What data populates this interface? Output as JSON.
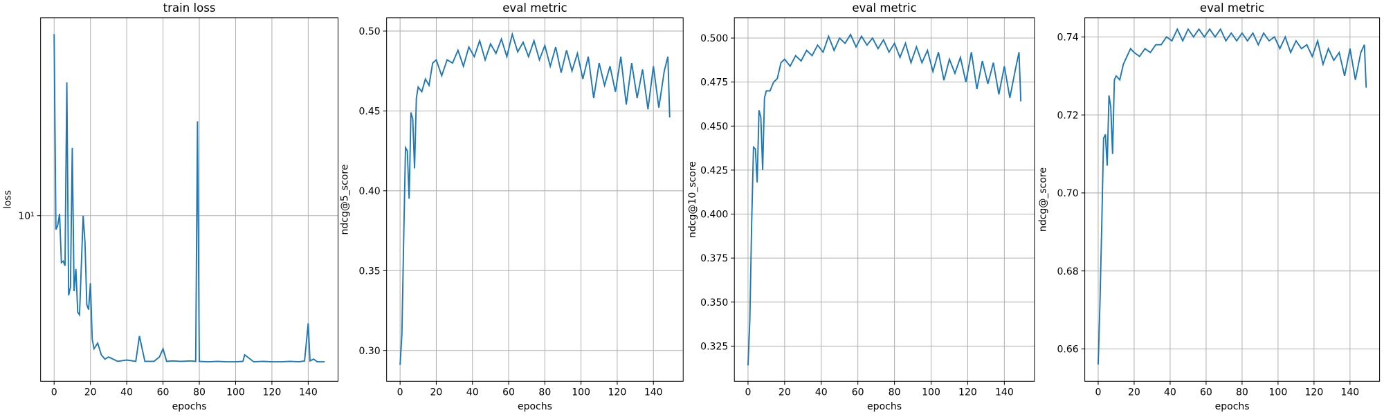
{
  "chart_data": [
    {
      "type": "line",
      "title": "train loss",
      "x_label": "epochs",
      "y_label": "loss",
      "color": "#1f77b4",
      "grid": true,
      "ylog": true,
      "x": [
        0,
        1,
        2,
        3,
        4,
        5,
        6,
        7,
        8,
        9,
        10,
        11,
        12,
        13,
        14,
        16,
        17,
        18,
        19,
        20,
        21,
        22,
        24,
        26,
        28,
        30,
        35,
        40,
        45,
        47,
        50,
        55,
        58,
        60,
        62,
        65,
        70,
        75,
        78,
        79,
        80,
        85,
        90,
        95,
        100,
        104,
        105,
        110,
        115,
        120,
        125,
        130,
        135,
        138,
        140,
        141,
        143,
        145,
        149
      ],
      "values": [
        72,
        8.6,
        9,
        10.2,
        6,
        6.1,
        5.8,
        42.6,
        4.2,
        4.6,
        20.9,
        4.4,
        5.6,
        3.5,
        3.4,
        10,
        7.5,
        3.8,
        3.6,
        4.8,
        2.6,
        2.35,
        2.5,
        2.2,
        2.1,
        2.15,
        2.05,
        2.08,
        2.05,
        2.7,
        2.05,
        2.05,
        2.15,
        2.35,
        2.05,
        2.06,
        2.05,
        2.06,
        2.05,
        27.9,
        2.05,
        2.04,
        2.05,
        2.04,
        2.04,
        2.05,
        2.2,
        2.04,
        2.05,
        2.04,
        2.04,
        2.05,
        2.04,
        2.06,
        3.1,
        2.06,
        2.1,
        2.04,
        2.04
      ],
      "xlim": [
        -7.45,
        156.45
      ],
      "xticks": [
        0,
        20,
        40,
        60,
        80,
        100,
        120,
        140
      ],
      "ylim": [
        1.65,
        86
      ],
      "yticks": [
        {
          "value": 10,
          "label": "10¹"
        }
      ]
    },
    {
      "type": "line",
      "title": "eval metric",
      "x_label": "epochs",
      "y_label": "ndcg@5_score",
      "color": "#1f77b4",
      "grid": true,
      "x": [
        0,
        1,
        2,
        3,
        4,
        5,
        6,
        7,
        8,
        9,
        10,
        12,
        14,
        16,
        18,
        20,
        23,
        26,
        29,
        32,
        35,
        38,
        41,
        44,
        47,
        50,
        53,
        56,
        59,
        62,
        65,
        68,
        71,
        74,
        77,
        80,
        83,
        86,
        89,
        92,
        95,
        98,
        101,
        104,
        107,
        110,
        113,
        116,
        119,
        122,
        125,
        128,
        131,
        134,
        137,
        140,
        143,
        146,
        148,
        149
      ],
      "values": [
        0.291,
        0.31,
        0.37,
        0.427,
        0.425,
        0.395,
        0.449,
        0.445,
        0.414,
        0.458,
        0.465,
        0.462,
        0.47,
        0.466,
        0.48,
        0.482,
        0.472,
        0.482,
        0.48,
        0.488,
        0.478,
        0.49,
        0.484,
        0.494,
        0.482,
        0.492,
        0.486,
        0.495,
        0.484,
        0.498,
        0.487,
        0.493,
        0.484,
        0.494,
        0.482,
        0.491,
        0.478,
        0.49,
        0.474,
        0.488,
        0.475,
        0.486,
        0.47,
        0.484,
        0.458,
        0.48,
        0.466,
        0.478,
        0.462,
        0.484,
        0.454,
        0.48,
        0.458,
        0.476,
        0.451,
        0.478,
        0.452,
        0.475,
        0.484,
        0.446
      ],
      "xlim": [
        -7.45,
        156.45
      ],
      "xticks": [
        0,
        20,
        40,
        60,
        80,
        100,
        120,
        140
      ],
      "ylim": [
        0.2807,
        0.5083
      ],
      "yticks": [
        {
          "value": 0.3,
          "label": "0.30"
        },
        0.35,
        {
          "value": 0.4,
          "label": "0.40"
        },
        0.45,
        {
          "value": 0.5,
          "label": "0.50"
        }
      ]
    },
    {
      "type": "line",
      "title": "eval metric",
      "x_label": "epochs",
      "y_label": "ndcg@10_score",
      "color": "#1f77b4",
      "grid": true,
      "x": [
        0,
        1,
        2,
        3,
        4,
        5,
        6,
        7,
        8,
        9,
        10,
        12,
        14,
        16,
        18,
        20,
        23,
        26,
        29,
        32,
        35,
        38,
        41,
        44,
        47,
        50,
        53,
        56,
        59,
        62,
        65,
        68,
        71,
        74,
        77,
        80,
        83,
        86,
        89,
        92,
        95,
        98,
        101,
        104,
        107,
        110,
        113,
        116,
        119,
        122,
        125,
        128,
        131,
        134,
        137,
        140,
        143,
        146,
        148,
        149
      ],
      "values": [
        0.314,
        0.34,
        0.395,
        0.438,
        0.437,
        0.418,
        0.459,
        0.455,
        0.425,
        0.466,
        0.47,
        0.47,
        0.475,
        0.477,
        0.486,
        0.488,
        0.484,
        0.49,
        0.487,
        0.493,
        0.49,
        0.496,
        0.492,
        0.501,
        0.493,
        0.5,
        0.497,
        0.502,
        0.495,
        0.501,
        0.496,
        0.5,
        0.494,
        0.499,
        0.492,
        0.497,
        0.489,
        0.497,
        0.486,
        0.495,
        0.486,
        0.493,
        0.481,
        0.492,
        0.476,
        0.488,
        0.48,
        0.489,
        0.475,
        0.492,
        0.471,
        0.487,
        0.474,
        0.486,
        0.468,
        0.484,
        0.466,
        0.482,
        0.492,
        0.464
      ],
      "xlim": [
        -7.45,
        156.45
      ],
      "xticks": [
        0,
        20,
        40,
        60,
        80,
        100,
        120,
        140
      ],
      "ylim": [
        0.305,
        0.5115
      ],
      "yticks": [
        0.325,
        {
          "value": 0.35,
          "label": "0.350"
        },
        0.375,
        {
          "value": 0.4,
          "label": "0.400"
        },
        0.425,
        {
          "value": 0.45,
          "label": "0.450"
        },
        0.475,
        {
          "value": 0.5,
          "label": "0.500"
        }
      ]
    },
    {
      "type": "line",
      "title": "eval metric",
      "x_label": "epochs",
      "y_label": "ndcg@_score",
      "color": "#1f77b4",
      "grid": true,
      "x": [
        0,
        1,
        2,
        3,
        4,
        5,
        6,
        7,
        8,
        9,
        10,
        12,
        14,
        16,
        18,
        20,
        23,
        26,
        29,
        32,
        35,
        38,
        41,
        44,
        47,
        50,
        53,
        56,
        59,
        62,
        65,
        68,
        71,
        74,
        77,
        80,
        83,
        86,
        89,
        92,
        95,
        98,
        101,
        104,
        107,
        110,
        113,
        116,
        119,
        122,
        125,
        128,
        131,
        134,
        137,
        140,
        143,
        146,
        148,
        149
      ],
      "values": [
        0.656,
        0.672,
        0.692,
        0.714,
        0.715,
        0.707,
        0.725,
        0.722,
        0.71,
        0.729,
        0.73,
        0.729,
        0.733,
        0.735,
        0.737,
        0.736,
        0.735,
        0.737,
        0.736,
        0.738,
        0.738,
        0.74,
        0.739,
        0.742,
        0.739,
        0.742,
        0.74,
        0.742,
        0.74,
        0.742,
        0.74,
        0.742,
        0.739,
        0.741,
        0.739,
        0.741,
        0.739,
        0.741,
        0.738,
        0.741,
        0.739,
        0.74,
        0.737,
        0.74,
        0.736,
        0.739,
        0.737,
        0.738,
        0.735,
        0.739,
        0.733,
        0.737,
        0.734,
        0.736,
        0.73,
        0.737,
        0.729,
        0.736,
        0.738,
        0.727
      ],
      "xlim": [
        -7.45,
        156.45
      ],
      "xticks": [
        0,
        20,
        40,
        60,
        80,
        100,
        120,
        140
      ],
      "ylim": [
        0.6517,
        0.7449
      ],
      "yticks": [
        0.66,
        0.68,
        {
          "value": 0.7,
          "label": "0.70"
        },
        0.72,
        0.74
      ]
    }
  ]
}
